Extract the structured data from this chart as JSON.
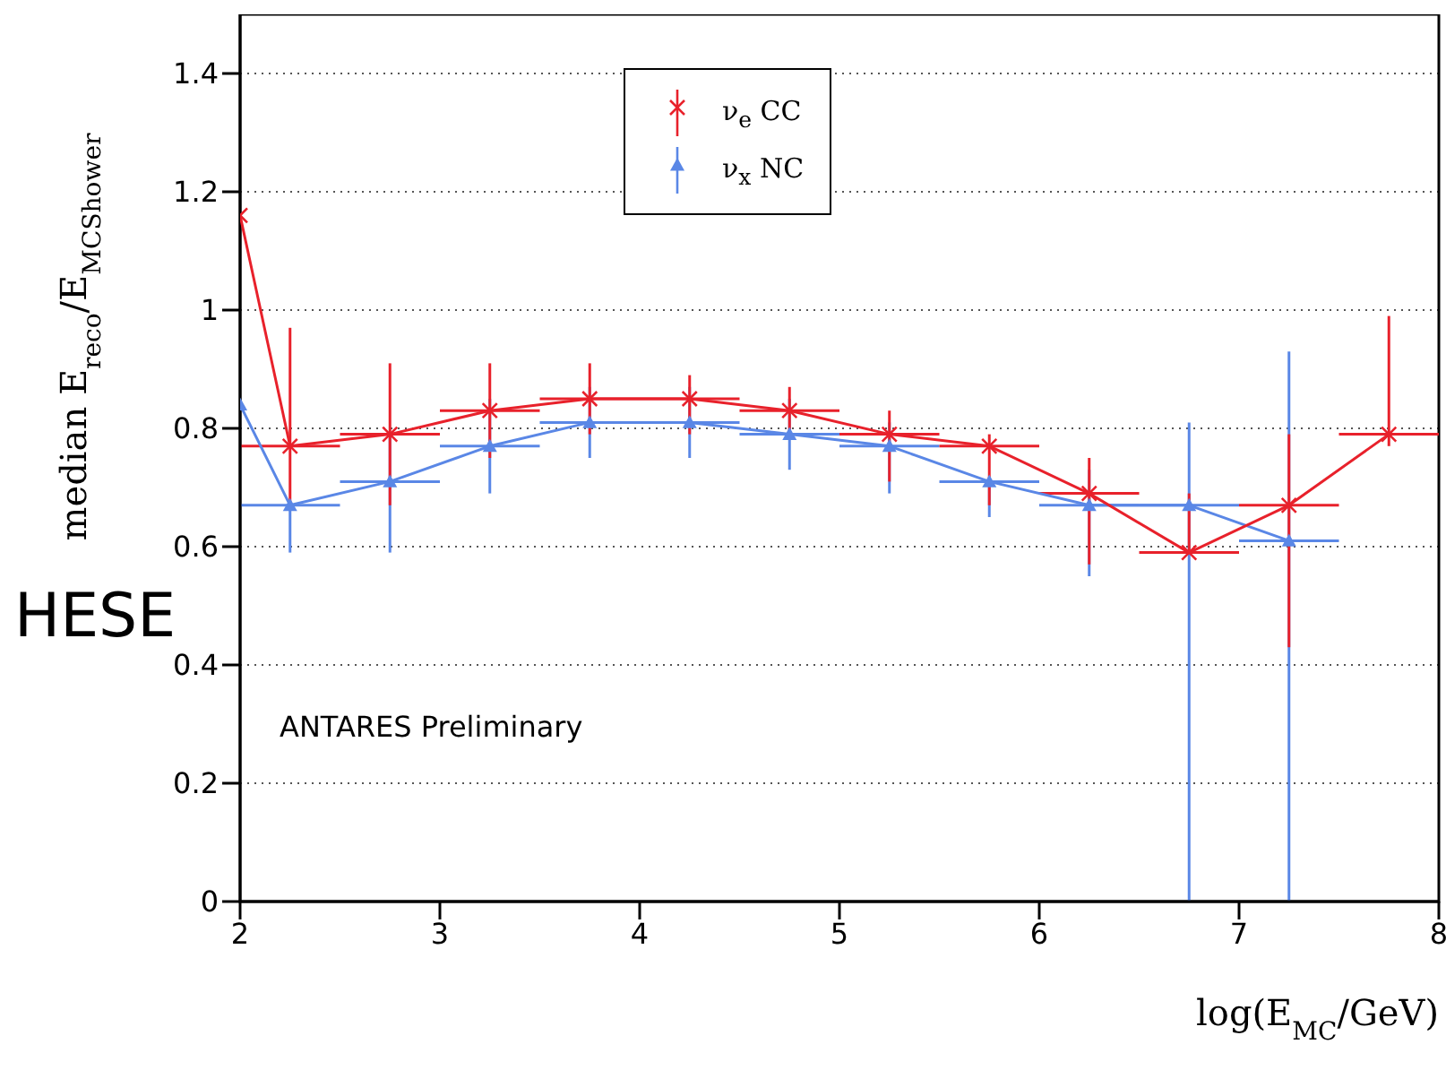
{
  "chart_data": {
    "type": "line",
    "xlabel": "log(E$_{MC}$/GeV)",
    "ylabel": "median E$_{reco}$/E$_{MCShower}$",
    "annotations": [
      "ANTARES Preliminary",
      "HESE"
    ],
    "xlim": [
      2,
      8
    ],
    "xticks": [
      2,
      3,
      4,
      5,
      6,
      7,
      8
    ],
    "ylim": [
      0,
      1.5
    ],
    "yticks": [
      0,
      0.2,
      0.4,
      0.6,
      0.8,
      1,
      1.2,
      1.4
    ],
    "grid": "y",
    "legend": "top",
    "series": [
      {
        "name": "ν$_{e}$ CC",
        "color": "#e8212b",
        "marker": "cross",
        "line_style": "solid",
        "x": [
          2,
          2.25,
          2.75,
          3.25,
          3.75,
          4.25,
          4.75,
          5.25,
          5.75,
          6.25,
          6.75,
          7.25,
          7.75
        ],
        "values": [
          1.16,
          0.77,
          0.79,
          0.83,
          0.85,
          0.85,
          0.83,
          0.79,
          0.77,
          0.69,
          0.59,
          0.67,
          0.79
        ],
        "errors": [
          null,
          [
            0.67,
            0.97
          ],
          [
            0.67,
            0.91
          ],
          [
            0.75,
            0.91
          ],
          [
            0.79,
            0.91
          ],
          [
            0.79,
            0.89
          ],
          [
            0.79,
            0.87
          ],
          [
            0.71,
            0.83
          ],
          [
            0.67,
            0.79
          ],
          [
            0.57,
            0.75
          ],
          [
            0.59,
            0.69
          ],
          [
            0.43,
            0.79
          ],
          [
            0.77,
            0.99
          ]
        ],
        "xerrors": [
          null,
          0.25,
          0.25,
          0.25,
          0.25,
          0.25,
          0.25,
          0.25,
          0.25,
          0.25,
          0.25,
          0.25,
          0.25
        ]
      },
      {
        "name": "ν$_{x}$ NC",
        "color": "#5a87e6",
        "marker": "triangle",
        "line_style": "solid",
        "x": [
          2,
          2.25,
          2.75,
          3.25,
          3.75,
          4.25,
          4.75,
          5.25,
          5.75,
          6.25,
          6.75,
          7.25
        ],
        "values": [
          0.84,
          0.67,
          0.71,
          0.77,
          0.81,
          0.81,
          0.79,
          0.77,
          0.71,
          0.67,
          0.67,
          0.61
        ],
        "errors": [
          null,
          [
            0.59,
            0.67
          ],
          [
            0.59,
            0.79
          ],
          [
            0.69,
            0.85
          ],
          [
            0.75,
            0.87
          ],
          [
            0.75,
            0.87
          ],
          [
            0.73,
            0.85
          ],
          [
            0.69,
            0.81
          ],
          [
            0.65,
            0.71
          ],
          [
            0.55,
            0.73
          ],
          [
            0,
            0.81
          ],
          [
            0,
            0.93
          ]
        ],
        "xerrors": [
          null,
          0.25,
          0.25,
          0.25,
          0.25,
          0.25,
          0.25,
          0.25,
          0.25,
          0.25,
          0.25,
          0.25
        ]
      }
    ]
  }
}
